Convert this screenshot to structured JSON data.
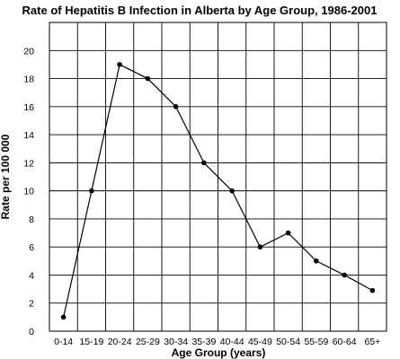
{
  "chart_data": {
    "type": "line",
    "title": "Rate of Hepatitis B Infection in Alberta by Age Group, 1986-2001",
    "xlabel": "Age Group (years)",
    "ylabel": "Rate per 100 000",
    "categories": [
      "0-14",
      "15-19",
      "20-24",
      "25-29",
      "30-34",
      "35-39",
      "40-44",
      "45-49",
      "50-54",
      "55-59",
      "60-64",
      "65+"
    ],
    "series": [
      {
        "values": [
          1,
          10,
          19,
          18,
          16,
          12,
          10,
          6,
          7,
          5,
          4,
          2.9
        ]
      }
    ],
    "ylim": [
      0,
      22
    ],
    "yticks": [
      0,
      2,
      4,
      6,
      8,
      10,
      12,
      14,
      16,
      18,
      20
    ],
    "grid": true,
    "legend": "none",
    "colors": {
      "line": "#000000",
      "marker": "#000000",
      "grid": "#000000",
      "background": "#ffffff"
    }
  }
}
